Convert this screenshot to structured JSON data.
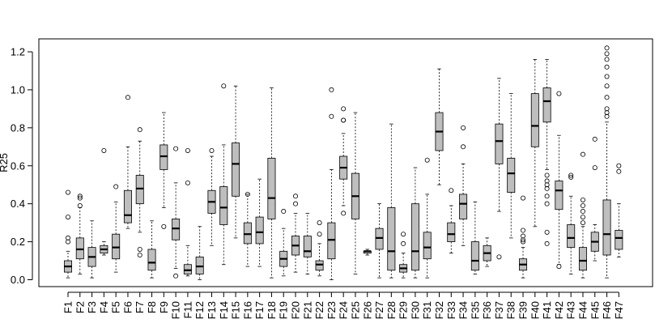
{
  "chart_data": {
    "type": "boxplot",
    "title": "",
    "xlabel": "",
    "ylabel": "R25",
    "ylim": [
      -0.04,
      1.26
    ],
    "yticks": [
      0.0,
      0.2,
      0.4,
      0.6,
      0.8,
      1.0,
      1.2
    ],
    "ytick_labels": [
      "0.0",
      "0.2",
      "0.4",
      "0.6",
      "0.8",
      "1.0",
      "1.2"
    ],
    "grid": false,
    "legend": "none",
    "box_fill": "#bebebe",
    "categories": [
      "F1",
      "F2",
      "F3",
      "F4",
      "F5",
      "F6",
      "F7",
      "F8",
      "F9",
      "F10",
      "F11",
      "F12",
      "F13",
      "F14",
      "F15",
      "F16",
      "F17",
      "F18",
      "F19",
      "F20",
      "F21",
      "F22",
      "F23",
      "F24",
      "F25",
      "F26",
      "F27",
      "F28",
      "F29",
      "F30",
      "F31",
      "F32",
      "F33",
      "F34",
      "F35",
      "F36",
      "F37",
      "F38",
      "F39",
      "F40",
      "F41",
      "F42",
      "F43",
      "F44",
      "F45",
      "F46",
      "F47"
    ],
    "boxes": [
      {
        "min": 0.01,
        "q1": 0.04,
        "median": 0.07,
        "q3": 0.1,
        "max": 0.15,
        "outliers": [
          0.2,
          0.22,
          0.33,
          0.46
        ]
      },
      {
        "min": 0.03,
        "q1": 0.11,
        "median": 0.16,
        "q3": 0.22,
        "max": 0.38,
        "outliers": [
          0.39,
          0.43,
          0.44
        ]
      },
      {
        "min": 0.01,
        "q1": 0.07,
        "median": 0.12,
        "q3": 0.17,
        "max": 0.31,
        "outliers": []
      },
      {
        "min": 0.13,
        "q1": 0.14,
        "median": 0.16,
        "q3": 0.18,
        "max": 0.2,
        "outliers": [
          0.68
        ]
      },
      {
        "min": 0.04,
        "q1": 0.11,
        "median": 0.17,
        "q3": 0.24,
        "max": 0.41,
        "outliers": [
          0.49
        ]
      },
      {
        "min": 0.27,
        "q1": 0.3,
        "median": 0.34,
        "q3": 0.47,
        "max": 0.7,
        "outliers": [
          0.96
        ]
      },
      {
        "min": 0.25,
        "q1": 0.4,
        "median": 0.48,
        "q3": 0.55,
        "max": 0.73,
        "outliers": [
          0.13,
          0.16,
          0.79
        ]
      },
      {
        "min": 0.01,
        "q1": 0.05,
        "median": 0.09,
        "q3": 0.16,
        "max": 0.31,
        "outliers": []
      },
      {
        "min": 0.38,
        "q1": 0.58,
        "median": 0.65,
        "q3": 0.71,
        "max": 0.88,
        "outliers": [
          0.28
        ]
      },
      {
        "min": 0.06,
        "q1": 0.21,
        "median": 0.27,
        "q3": 0.32,
        "max": 0.51,
        "outliers": [
          0.02,
          0.69
        ]
      },
      {
        "min": 0.02,
        "q1": 0.03,
        "median": 0.05,
        "q3": 0.08,
        "max": 0.18,
        "outliers": [
          0.51,
          0.68
        ]
      },
      {
        "min": 0.0,
        "q1": 0.03,
        "median": 0.07,
        "q3": 0.12,
        "max": 0.28,
        "outliers": []
      },
      {
        "min": 0.18,
        "q1": 0.35,
        "median": 0.41,
        "q3": 0.47,
        "max": 0.65,
        "outliers": [
          0.68
        ]
      },
      {
        "min": 0.08,
        "q1": 0.29,
        "median": 0.38,
        "q3": 0.49,
        "max": 0.71,
        "outliers": [
          1.02
        ]
      },
      {
        "min": 0.22,
        "q1": 0.44,
        "median": 0.61,
        "q3": 0.72,
        "max": 1.02,
        "outliers": []
      },
      {
        "min": 0.07,
        "q1": 0.19,
        "median": 0.24,
        "q3": 0.3,
        "max": 0.45,
        "outliers": [
          0.45
        ]
      },
      {
        "min": 0.07,
        "q1": 0.19,
        "median": 0.25,
        "q3": 0.33,
        "max": 0.53,
        "outliers": []
      },
      {
        "min": 0.01,
        "q1": 0.32,
        "median": 0.43,
        "q3": 0.64,
        "max": 1.01,
        "outliers": []
      },
      {
        "min": 0.02,
        "q1": 0.07,
        "median": 0.11,
        "q3": 0.15,
        "max": 0.27,
        "outliers": [
          0.36
        ]
      },
      {
        "min": 0.04,
        "q1": 0.13,
        "median": 0.18,
        "q3": 0.23,
        "max": 0.35,
        "outliers": [
          0.4,
          0.44
        ]
      },
      {
        "min": 0.03,
        "q1": 0.12,
        "median": 0.15,
        "q3": 0.23,
        "max": 0.35,
        "outliers": []
      },
      {
        "min": 0.02,
        "q1": 0.05,
        "median": 0.08,
        "q3": 0.1,
        "max": 0.19,
        "outliers": [
          0.24,
          0.3
        ]
      },
      {
        "min": 0.0,
        "q1": 0.11,
        "median": 0.21,
        "q3": 0.3,
        "max": 0.58,
        "outliers": [
          0.86,
          1.0
        ]
      },
      {
        "min": 0.39,
        "q1": 0.53,
        "median": 0.59,
        "q3": 0.65,
        "max": 0.77,
        "outliers": [
          0.35,
          0.84,
          0.84,
          0.9
        ]
      },
      {
        "min": 0.03,
        "q1": 0.32,
        "median": 0.44,
        "q3": 0.56,
        "max": 0.88,
        "outliers": []
      },
      {
        "min": 0.13,
        "q1": 0.14,
        "median": 0.15,
        "q3": 0.15,
        "max": 0.16,
        "outliers": []
      },
      {
        "min": 0.01,
        "q1": 0.16,
        "median": 0.22,
        "q3": 0.27,
        "max": 0.4,
        "outliers": []
      },
      {
        "min": 0.01,
        "q1": 0.05,
        "median": 0.15,
        "q3": 0.38,
        "max": 0.82,
        "outliers": []
      },
      {
        "min": 0.01,
        "q1": 0.04,
        "median": 0.06,
        "q3": 0.08,
        "max": 0.14,
        "outliers": [
          0.19,
          0.24
        ]
      },
      {
        "min": 0.01,
        "q1": 0.05,
        "median": 0.15,
        "q3": 0.4,
        "max": 0.59,
        "outliers": []
      },
      {
        "min": 0.01,
        "q1": 0.11,
        "median": 0.17,
        "q3": 0.25,
        "max": 0.45,
        "outliers": [
          0.63
        ]
      },
      {
        "min": 0.5,
        "q1": 0.68,
        "median": 0.78,
        "q3": 0.88,
        "max": 1.11,
        "outliers": []
      },
      {
        "min": 0.14,
        "q1": 0.2,
        "median": 0.24,
        "q3": 0.3,
        "max": 0.39,
        "outliers": [
          0.47
        ]
      },
      {
        "min": 0.18,
        "q1": 0.32,
        "median": 0.4,
        "q3": 0.45,
        "max": 0.61,
        "outliers": [
          0.7,
          0.8
        ]
      },
      {
        "min": 0.03,
        "q1": 0.05,
        "median": 0.1,
        "q3": 0.2,
        "max": 0.41,
        "outliers": []
      },
      {
        "min": 0.07,
        "q1": 0.1,
        "median": 0.14,
        "q3": 0.18,
        "max": 0.22,
        "outliers": []
      },
      {
        "min": 0.36,
        "q1": 0.61,
        "median": 0.73,
        "q3": 0.82,
        "max": 1.06,
        "outliers": [
          0.12
        ]
      },
      {
        "min": 0.22,
        "q1": 0.46,
        "median": 0.56,
        "q3": 0.64,
        "max": 0.98,
        "outliers": []
      },
      {
        "min": 0.01,
        "q1": 0.05,
        "median": 0.08,
        "q3": 0.11,
        "max": 0.17,
        "outliers": [
          0.2,
          0.21,
          0.23,
          0.26,
          0.43
        ]
      },
      {
        "min": 0.28,
        "q1": 0.7,
        "median": 0.81,
        "q3": 0.98,
        "max": 1.16,
        "outliers": []
      },
      {
        "min": 0.58,
        "q1": 0.83,
        "median": 0.94,
        "q3": 1.01,
        "max": 1.16,
        "outliers": [
          0.19,
          0.25,
          0.4,
          0.44,
          0.48,
          0.5,
          0.52,
          0.55
        ]
      },
      {
        "min": 0.08,
        "q1": 0.37,
        "median": 0.47,
        "q3": 0.52,
        "max": 0.76,
        "outliers": [
          0.07,
          0.98
        ]
      },
      {
        "min": 0.03,
        "q1": 0.17,
        "median": 0.22,
        "q3": 0.29,
        "max": 0.44,
        "outliers": [
          0.54,
          0.55
        ]
      },
      {
        "min": 0.01,
        "q1": 0.05,
        "median": 0.1,
        "q3": 0.17,
        "max": 0.28,
        "outliers": [
          0.3,
          0.33,
          0.36,
          0.39,
          0.42,
          0.66
        ]
      },
      {
        "min": 0.1,
        "q1": 0.15,
        "median": 0.2,
        "q3": 0.25,
        "max": 0.29,
        "outliers": [
          0.59,
          0.74
        ]
      },
      {
        "min": 0.01,
        "q1": 0.13,
        "median": 0.24,
        "q3": 0.42,
        "max": 0.83,
        "outliers": [
          0.86,
          0.88,
          0.9,
          0.96,
          1.02,
          1.07,
          1.12,
          1.16,
          1.19,
          1.22
        ]
      },
      {
        "min": 0.12,
        "q1": 0.16,
        "median": 0.22,
        "q3": 0.26,
        "max": 0.4,
        "outliers": [
          0.57,
          0.6
        ]
      }
    ]
  }
}
